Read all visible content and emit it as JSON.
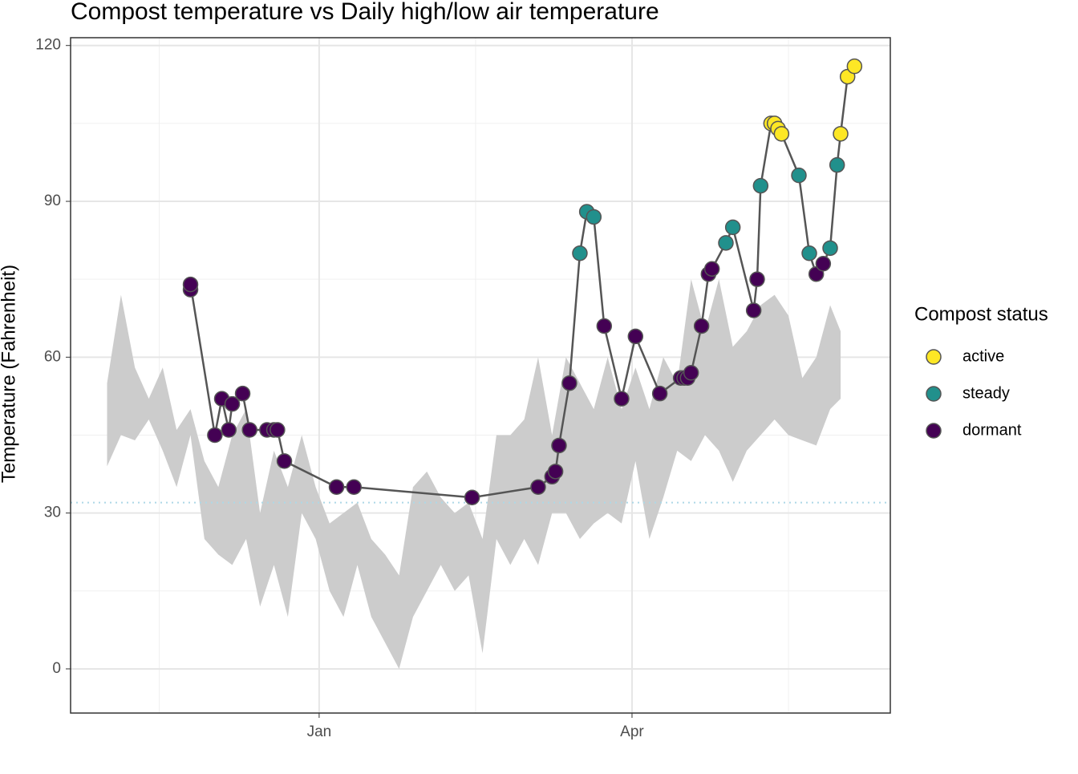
{
  "chart_data": {
    "type": "line",
    "title": "Compost temperature vs Daily high/low air temperature",
    "y_label": "Temperature (Fahrenheit)",
    "legend_title": "Compost status",
    "status_levels": [
      {
        "name": "active",
        "color": "#fde725"
      },
      {
        "name": "steady",
        "color": "#21908c"
      },
      {
        "name": "dormant",
        "color": "#440154"
      }
    ],
    "x": [
      -37,
      -37,
      -30,
      -28,
      -26,
      -25,
      -22,
      -20,
      -15,
      -13,
      -12,
      -10,
      5,
      10,
      44,
      63,
      67,
      68,
      69,
      72,
      75,
      77,
      79,
      82,
      87,
      91,
      98,
      104,
      105,
      106,
      107,
      110,
      112,
      113,
      117,
      119,
      125,
      126,
      127,
      130,
      131,
      132,
      133,
      138,
      141,
      143,
      145,
      147,
      149,
      150,
      152,
      154
    ],
    "values": [
      73,
      74,
      45,
      52,
      46,
      51,
      53,
      46,
      46,
      46,
      46,
      40,
      35,
      35,
      33,
      35,
      37,
      38,
      43,
      55,
      80,
      88,
      87,
      66,
      52,
      64,
      53,
      56,
      56,
      56,
      57,
      66,
      76,
      77,
      82,
      85,
      69,
      75,
      93,
      105,
      105,
      104,
      103,
      95,
      80,
      76,
      78,
      81,
      97,
      103,
      114,
      116
    ],
    "status": [
      "dormant",
      "dormant",
      "dormant",
      "dormant",
      "dormant",
      "dormant",
      "dormant",
      "dormant",
      "dormant",
      "dormant",
      "dormant",
      "dormant",
      "dormant",
      "dormant",
      "dormant",
      "dormant",
      "dormant",
      "dormant",
      "dormant",
      "dormant",
      "steady",
      "steady",
      "steady",
      "dormant",
      "dormant",
      "dormant",
      "dormant",
      "dormant",
      "dormant",
      "dormant",
      "dormant",
      "dormant",
      "dormant",
      "dormant",
      "steady",
      "steady",
      "dormant",
      "dormant",
      "steady",
      "active",
      "active",
      "active",
      "active",
      "steady",
      "steady",
      "dormant",
      "dormant",
      "steady",
      "steady",
      "active",
      "active",
      "active"
    ],
    "ribbon": {
      "color": "#cccccc",
      "x": [
        -61,
        -57,
        -53,
        -49,
        -45,
        -41,
        -37,
        -33,
        -29,
        -25,
        -21,
        -17,
        -13,
        -9,
        -5,
        -1,
        3,
        7,
        11,
        15,
        19,
        23,
        27,
        31,
        35,
        39,
        43,
        47,
        51,
        55,
        59,
        63,
        67,
        71,
        75,
        79,
        83,
        87,
        91,
        95,
        99,
        103,
        107,
        111,
        115,
        119,
        123,
        127,
        131,
        135,
        139,
        143,
        147,
        150
      ],
      "low": [
        39,
        45,
        44,
        48,
        42,
        35,
        45,
        25,
        22,
        20,
        25,
        12,
        20,
        10,
        30,
        25,
        15,
        10,
        20,
        10,
        5,
        0,
        10,
        15,
        20,
        15,
        18,
        3,
        25,
        20,
        25,
        20,
        30,
        30,
        25,
        28,
        30,
        28,
        40,
        25,
        33,
        42,
        40,
        45,
        42,
        36,
        42,
        45,
        48,
        45,
        44,
        43,
        50,
        52
      ],
      "high": [
        55,
        72,
        58,
        52,
        58,
        46,
        50,
        40,
        35,
        45,
        50,
        30,
        42,
        35,
        45,
        35,
        28,
        30,
        32,
        25,
        22,
        18,
        35,
        38,
        33,
        30,
        32,
        25,
        45,
        45,
        48,
        60,
        45,
        60,
        55,
        50,
        60,
        50,
        58,
        50,
        60,
        55,
        75,
        65,
        75,
        62,
        65,
        70,
        72,
        68,
        56,
        60,
        70,
        65
      ]
    },
    "hline": 32,
    "hline_color": "#add8e6",
    "xlim": [
      -71.5,
      164.3
    ],
    "ylim": [
      -8.5,
      121.5
    ],
    "xticks": [
      {
        "value": 0,
        "label": "Jan"
      },
      {
        "value": 90,
        "label": "Apr"
      }
    ],
    "minor_xticks": [
      -46,
      45,
      135
    ],
    "yticks": [
      0,
      30,
      60,
      90,
      120
    ],
    "minor_yticks": [
      15,
      45,
      75,
      105
    ],
    "grid": true
  }
}
